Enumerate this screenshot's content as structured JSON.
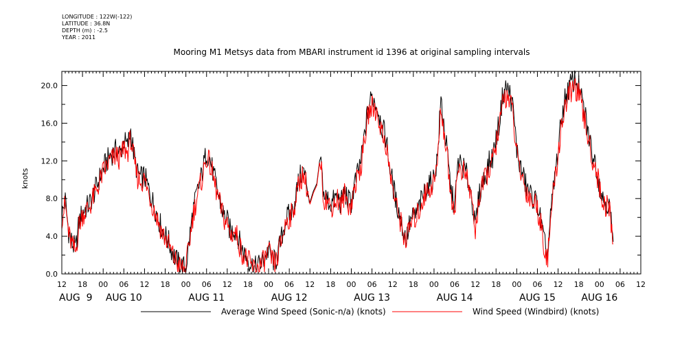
{
  "header": {
    "longitude": "LONGITUDE : 122W(-122)",
    "latitude": "LATITUDE : 36.8N",
    "depth": "DEPTH (m) : -2.5",
    "year": "YEAR : 2011"
  },
  "chart_data": {
    "type": "line",
    "title": "Mooring M1 Metsys data from MBARI instrument id 1396 at original sampling intervals",
    "ylabel": "knots",
    "xlabel": "",
    "x_range_hours": [
      0,
      168
    ],
    "ylim": [
      0,
      21.5
    ],
    "y_ticks": [
      "0.0",
      "4.0",
      "8.0",
      "12.0",
      "16.0",
      "20.0"
    ],
    "x_hour_ticks": [
      "12",
      "18",
      "00",
      "06",
      "12",
      "18",
      "00",
      "06",
      "12",
      "18",
      "00",
      "06",
      "12",
      "18",
      "00",
      "06",
      "12",
      "18",
      "00",
      "06",
      "12",
      "18",
      "00",
      "06",
      "12",
      "18",
      "00",
      "06",
      "12"
    ],
    "date_labels": [
      "AUG  9",
      "AUG 10",
      "AUG 11",
      "AUG 12",
      "AUG 13",
      "AUG 14",
      "AUG 15",
      "AUG 16"
    ],
    "date_label_hours": [
      0,
      18,
      42,
      66,
      90,
      114,
      138,
      156
    ],
    "legend": [
      {
        "name": "Average Wind Speed (Sonic-n/a) (knots)",
        "color": "#000000"
      },
      {
        "name": "Wind Speed (Windbird) (knots)",
        "color": "#ff0000"
      }
    ],
    "x_unit": "hours since AUG 9 12:00",
    "series": [
      {
        "name": "Average Wind Speed (Sonic-n/a) (knots)",
        "color": "#000000",
        "points": [
          [
            0,
            6.2
          ],
          [
            1,
            7.8
          ],
          [
            2,
            4.5
          ],
          [
            3,
            3.2
          ],
          [
            4,
            2.6
          ],
          [
            5,
            5.5
          ],
          [
            6,
            6.6
          ],
          [
            8,
            7.4
          ],
          [
            10,
            9.2
          ],
          [
            12,
            11.2
          ],
          [
            14,
            12.6
          ],
          [
            16,
            13.2
          ],
          [
            17,
            12.8
          ],
          [
            18,
            14.2
          ],
          [
            19,
            13.5
          ],
          [
            20,
            15.2
          ],
          [
            21,
            12.4
          ],
          [
            22,
            10.6
          ],
          [
            23,
            10.2
          ],
          [
            24,
            10.4
          ],
          [
            25,
            9.2
          ],
          [
            27,
            7.0
          ],
          [
            29,
            4.8
          ],
          [
            31,
            3.4
          ],
          [
            32,
            2.4
          ],
          [
            33,
            1.6
          ],
          [
            34,
            1.0
          ],
          [
            35,
            0.8
          ],
          [
            36,
            0.6
          ],
          [
            37,
            3.6
          ],
          [
            38,
            6.5
          ],
          [
            39,
            8.2
          ],
          [
            40,
            9.6
          ],
          [
            41,
            11.2
          ],
          [
            42,
            13.0
          ],
          [
            43,
            12.2
          ],
          [
            44,
            10.6
          ],
          [
            45,
            9.0
          ],
          [
            46,
            7.6
          ],
          [
            47,
            6.2
          ],
          [
            48,
            5.6
          ],
          [
            49,
            4.4
          ],
          [
            50,
            4.8
          ],
          [
            51,
            4.2
          ],
          [
            52,
            2.8
          ],
          [
            53,
            2.2
          ],
          [
            54,
            1.6
          ],
          [
            55,
            1.0
          ],
          [
            56,
            0.6
          ],
          [
            57,
            0.9
          ],
          [
            58,
            1.2
          ],
          [
            59,
            1.8
          ],
          [
            60,
            2.6
          ],
          [
            61,
            1.6
          ],
          [
            62,
            1.2
          ],
          [
            63,
            2.6
          ],
          [
            64,
            4.2
          ],
          [
            65,
            5.8
          ],
          [
            66,
            6.3
          ],
          [
            67,
            6.7
          ],
          [
            68,
            8.6
          ],
          [
            69,
            10.2
          ],
          [
            70,
            11.0
          ],
          [
            71,
            9.8
          ],
          [
            72,
            7.6
          ],
          [
            73,
            8.8
          ],
          [
            74,
            9.6
          ],
          [
            75,
            12.6
          ],
          [
            76,
            8.4
          ],
          [
            77,
            8.0
          ],
          [
            78,
            7.4
          ],
          [
            79,
            7.8
          ],
          [
            80,
            8.3
          ],
          [
            81,
            7.4
          ],
          [
            82,
            8.8
          ],
          [
            83,
            7.8
          ],
          [
            84,
            7.6
          ],
          [
            85,
            9.6
          ],
          [
            86,
            10.8
          ],
          [
            87,
            12.4
          ],
          [
            88,
            15.2
          ],
          [
            89,
            17.8
          ],
          [
            90,
            18.8
          ],
          [
            91,
            18.2
          ],
          [
            92,
            17.2
          ],
          [
            93,
            15.4
          ],
          [
            94,
            14.6
          ],
          [
            95,
            11.8
          ],
          [
            96,
            9.6
          ],
          [
            97,
            7.6
          ],
          [
            98,
            6.4
          ],
          [
            99,
            4.6
          ],
          [
            100,
            3.8
          ],
          [
            101,
            5.4
          ],
          [
            102,
            6.1
          ],
          [
            103,
            6.4
          ],
          [
            104,
            7.4
          ],
          [
            105,
            8.5
          ],
          [
            106,
            9.2
          ],
          [
            107,
            9.6
          ],
          [
            108,
            10.2
          ],
          [
            109,
            12.4
          ],
          [
            110,
            18.6
          ],
          [
            111,
            15.4
          ],
          [
            112,
            12.2
          ],
          [
            113,
            8.6
          ],
          [
            114,
            7.2
          ],
          [
            115,
            11.8
          ],
          [
            116,
            11.6
          ],
          [
            117,
            11.0
          ],
          [
            118,
            9.8
          ],
          [
            119,
            8.2
          ],
          [
            120,
            4.8
          ],
          [
            121,
            8.2
          ],
          [
            122,
            9.6
          ],
          [
            123,
            10.6
          ],
          [
            124,
            11.8
          ],
          [
            125,
            12.4
          ],
          [
            126,
            14.4
          ],
          [
            127,
            16.2
          ],
          [
            128,
            19.2
          ],
          [
            129,
            19.8
          ],
          [
            130,
            19.2
          ],
          [
            131,
            17.4
          ],
          [
            132,
            13.2
          ],
          [
            133,
            11.4
          ],
          [
            134,
            10.2
          ],
          [
            135,
            9.0
          ],
          [
            136,
            8.4
          ],
          [
            137,
            8.0
          ],
          [
            138,
            7.4
          ],
          [
            139,
            5.6
          ],
          [
            140,
            3.2
          ],
          [
            141,
            2.0
          ],
          [
            142,
            6.8
          ],
          [
            143,
            10.2
          ],
          [
            144,
            13.2
          ],
          [
            145,
            16.4
          ],
          [
            146,
            18.6
          ],
          [
            147,
            19.6
          ],
          [
            148,
            20.4
          ],
          [
            149,
            20.6
          ],
          [
            150,
            19.8
          ],
          [
            151,
            18.2
          ],
          [
            152,
            16.6
          ],
          [
            153,
            14.4
          ],
          [
            154,
            12.8
          ],
          [
            155,
            11.6
          ],
          [
            156,
            9.6
          ],
          [
            157,
            8.0
          ],
          [
            158,
            7.6
          ],
          [
            159,
            7.0
          ],
          [
            160,
            3.4
          ]
        ]
      },
      {
        "name": "Wind Speed (Windbird) (knots)",
        "color": "#ff0000",
        "points": [
          [
            0,
            6.0
          ],
          [
            1,
            7.4
          ],
          [
            2,
            4.2
          ],
          [
            3,
            3.0
          ],
          [
            4,
            2.3
          ],
          [
            5,
            5.2
          ],
          [
            6,
            6.3
          ],
          [
            8,
            7.1
          ],
          [
            10,
            8.8
          ],
          [
            12,
            10.8
          ],
          [
            14,
            12.0
          ],
          [
            16,
            12.6
          ],
          [
            17,
            12.1
          ],
          [
            18,
            13.4
          ],
          [
            19,
            12.8
          ],
          [
            20,
            14.4
          ],
          [
            21,
            11.8
          ],
          [
            22,
            10.2
          ],
          [
            23,
            9.8
          ],
          [
            24,
            10.0
          ],
          [
            25,
            8.8
          ],
          [
            27,
            6.6
          ],
          [
            29,
            4.5
          ],
          [
            31,
            3.1
          ],
          [
            32,
            2.1
          ],
          [
            33,
            1.4
          ],
          [
            34,
            0.8
          ],
          [
            35,
            0.6
          ],
          [
            36,
            0.5
          ],
          [
            37,
            3.3
          ],
          [
            38,
            6.1
          ],
          [
            39,
            7.8
          ],
          [
            40,
            9.2
          ],
          [
            41,
            10.6
          ],
          [
            42,
            12.4
          ],
          [
            43,
            11.6
          ],
          [
            44,
            10.1
          ],
          [
            45,
            8.6
          ],
          [
            46,
            7.2
          ],
          [
            47,
            5.9
          ],
          [
            48,
            5.3
          ],
          [
            49,
            4.1
          ],
          [
            50,
            4.5
          ],
          [
            51,
            3.9
          ],
          [
            52,
            2.5
          ],
          [
            53,
            1.9
          ],
          [
            54,
            1.4
          ],
          [
            55,
            0.8
          ],
          [
            56,
            0.5
          ],
          [
            57,
            0.7
          ],
          [
            58,
            1.0
          ],
          [
            59,
            1.6
          ],
          [
            60,
            2.3
          ],
          [
            61,
            1.4
          ],
          [
            62,
            1.0
          ],
          [
            63,
            2.4
          ],
          [
            64,
            3.9
          ],
          [
            65,
            5.5
          ],
          [
            66,
            6.0
          ],
          [
            67,
            6.4
          ],
          [
            68,
            8.2
          ],
          [
            69,
            9.8
          ],
          [
            70,
            10.6
          ],
          [
            71,
            9.4
          ],
          [
            72,
            7.4
          ],
          [
            73,
            8.6
          ],
          [
            74,
            9.4
          ],
          [
            75,
            12.4
          ],
          [
            76,
            8.1
          ],
          [
            77,
            7.7
          ],
          [
            78,
            7.1
          ],
          [
            79,
            7.5
          ],
          [
            80,
            8.0
          ],
          [
            81,
            7.1
          ],
          [
            82,
            8.5
          ],
          [
            83,
            7.5
          ],
          [
            84,
            7.3
          ],
          [
            85,
            9.3
          ],
          [
            86,
            10.4
          ],
          [
            87,
            11.9
          ],
          [
            88,
            14.6
          ],
          [
            89,
            17.0
          ],
          [
            90,
            17.8
          ],
          [
            91,
            17.4
          ],
          [
            92,
            16.4
          ],
          [
            93,
            14.8
          ],
          [
            94,
            13.9
          ],
          [
            95,
            11.2
          ],
          [
            96,
            9.2
          ],
          [
            97,
            7.2
          ],
          [
            98,
            6.1
          ],
          [
            99,
            4.3
          ],
          [
            100,
            3.5
          ],
          [
            101,
            5.1
          ],
          [
            102,
            5.8
          ],
          [
            103,
            6.1
          ],
          [
            104,
            7.1
          ],
          [
            105,
            8.2
          ],
          [
            106,
            8.8
          ],
          [
            107,
            9.2
          ],
          [
            108,
            9.8
          ],
          [
            109,
            11.8
          ],
          [
            110,
            17.8
          ],
          [
            111,
            14.8
          ],
          [
            112,
            11.8
          ],
          [
            113,
            8.2
          ],
          [
            114,
            6.9
          ],
          [
            115,
            11.2
          ],
          [
            116,
            11.1
          ],
          [
            117,
            10.6
          ],
          [
            118,
            9.4
          ],
          [
            119,
            7.9
          ],
          [
            120,
            4.5
          ],
          [
            121,
            7.9
          ],
          [
            122,
            9.2
          ],
          [
            123,
            10.2
          ],
          [
            124,
            11.2
          ],
          [
            125,
            11.9
          ],
          [
            126,
            13.8
          ],
          [
            127,
            15.5
          ],
          [
            128,
            18.4
          ],
          [
            129,
            19.0
          ],
          [
            130,
            18.5
          ],
          [
            131,
            16.7
          ],
          [
            132,
            12.6
          ],
          [
            133,
            10.9
          ],
          [
            134,
            9.8
          ],
          [
            135,
            8.6
          ],
          [
            136,
            8.0
          ],
          [
            137,
            7.6
          ],
          [
            138,
            7.1
          ],
          [
            139,
            5.3
          ],
          [
            140,
            2.9
          ],
          [
            141,
            1.6
          ],
          [
            142,
            6.5
          ],
          [
            143,
            9.8
          ],
          [
            144,
            12.6
          ],
          [
            145,
            15.8
          ],
          [
            146,
            17.8
          ],
          [
            147,
            18.8
          ],
          [
            148,
            19.6
          ],
          [
            149,
            19.8
          ],
          [
            150,
            19.0
          ],
          [
            151,
            17.4
          ],
          [
            152,
            15.8
          ],
          [
            153,
            13.8
          ],
          [
            154,
            12.2
          ],
          [
            155,
            11.1
          ],
          [
            156,
            9.2
          ],
          [
            157,
            7.6
          ],
          [
            158,
            7.2
          ],
          [
            159,
            6.7
          ],
          [
            160,
            3.2
          ]
        ]
      }
    ]
  }
}
